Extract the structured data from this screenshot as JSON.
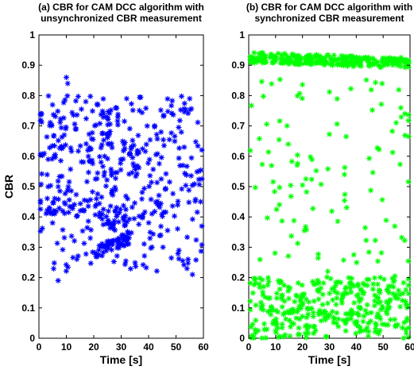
{
  "chart_data": [
    {
      "type": "scatter",
      "title": "(a) CBR for CAM DCC algorithm with unsynchronized CBR measurement",
      "title_lines": [
        "(a) CBR for CAM DCC algorithm with",
        "unsynchronized CBR measurement"
      ],
      "xlabel": "Time [s]",
      "ylabel": "CBR",
      "xlim": [
        0,
        60
      ],
      "ylim": [
        0,
        1
      ],
      "xticks": [
        "0",
        "10",
        "20",
        "30",
        "40",
        "50",
        "60"
      ],
      "yticks": [
        "0",
        "0.1",
        "0.2",
        "0.3",
        "0.4",
        "0.5",
        "0.6",
        "0.7",
        "0.8",
        "0.9",
        "1"
      ],
      "marker": "*",
      "color": "#0000ff",
      "grid": false,
      "points_sample": [
        [
          0.5,
          0.57
        ],
        [
          1,
          0.62
        ],
        [
          1.5,
          0.66
        ],
        [
          2,
          0.53
        ],
        [
          3,
          0.6
        ],
        [
          4,
          0.7
        ],
        [
          5,
          0.65
        ],
        [
          5.5,
          0.28
        ],
        [
          6,
          0.42
        ],
        [
          7,
          0.19
        ],
        [
          8,
          0.76
        ],
        [
          9,
          0.79
        ],
        [
          10,
          0.86
        ],
        [
          10.5,
          0.84
        ],
        [
          12,
          0.33
        ],
        [
          13,
          0.7
        ],
        [
          14,
          0.75
        ],
        [
          15,
          0.3
        ],
        [
          17,
          0.73
        ],
        [
          18,
          0.4
        ],
        [
          19,
          0.25
        ],
        [
          20,
          0.46
        ],
        [
          21,
          0.28
        ],
        [
          22,
          0.27
        ],
        [
          23,
          0.36
        ],
        [
          24,
          0.72
        ],
        [
          25,
          0.43
        ],
        [
          25.5,
          0.28
        ],
        [
          27,
          0.29
        ],
        [
          28,
          0.76
        ],
        [
          29,
          0.3
        ],
        [
          30,
          0.31
        ],
        [
          31,
          0.33
        ],
        [
          32,
          0.79
        ],
        [
          34,
          0.63
        ],
        [
          36,
          0.5
        ],
        [
          38,
          0.7
        ],
        [
          39,
          0.3
        ],
        [
          40,
          0.58
        ],
        [
          42,
          0.68
        ],
        [
          44,
          0.57
        ],
        [
          46,
          0.51
        ],
        [
          48,
          0.72
        ],
        [
          50,
          0.38
        ],
        [
          52,
          0.65
        ],
        [
          54,
          0.23
        ],
        [
          55,
          0.79
        ],
        [
          56,
          0.21
        ],
        [
          58,
          0.67
        ],
        [
          60,
          0.55
        ]
      ]
    },
    {
      "type": "scatter",
      "title": "(b) CBR for CAM DCC algorithm with synchronized CBR measurement",
      "title_lines": [
        "(b) CBR for CAM DCC algorithm with",
        "synchronized CBR measurement"
      ],
      "xlabel": "Time [s]",
      "ylabel": "",
      "xlim": [
        0,
        60
      ],
      "ylim": [
        0,
        1
      ],
      "xticks": [
        "0",
        "10",
        "20",
        "30",
        "40",
        "50",
        "60"
      ],
      "yticks": [
        "0",
        "0.1",
        "0.2",
        "0.3",
        "0.4",
        "0.5",
        "0.6",
        "0.7",
        "0.8",
        "0.9",
        "1"
      ],
      "marker": "*",
      "color": "#00ff00",
      "grid": false,
      "points_sample": [
        [
          1,
          0.94
        ],
        [
          5,
          0.92
        ],
        [
          10,
          0.93
        ],
        [
          15,
          0.92
        ],
        [
          20,
          0.94
        ],
        [
          25,
          0.93
        ],
        [
          30,
          0.92
        ],
        [
          35,
          0.93
        ],
        [
          40,
          0.91
        ],
        [
          45,
          0.92
        ],
        [
          50,
          0.91
        ],
        [
          55,
          0.93
        ],
        [
          60,
          0.92
        ],
        [
          2,
          0.74
        ],
        [
          3,
          0.58
        ],
        [
          2,
          0.45
        ],
        [
          8,
          0.85
        ],
        [
          12,
          0.82
        ],
        [
          18,
          0.79
        ],
        [
          20,
          0.47
        ],
        [
          25,
          0.5
        ],
        [
          27,
          0.37
        ],
        [
          30,
          0.68
        ],
        [
          35,
          0.55
        ],
        [
          37,
          0.43
        ],
        [
          40,
          0.57
        ],
        [
          43,
          0.42
        ],
        [
          45,
          0.37
        ],
        [
          48,
          0.81
        ],
        [
          50,
          0.64
        ],
        [
          52,
          0.46
        ],
        [
          55,
          0.72
        ],
        [
          58,
          0.52
        ],
        [
          1,
          0.15
        ],
        [
          3,
          0.05
        ],
        [
          6,
          0.18
        ],
        [
          10,
          0.1
        ],
        [
          15,
          0.03
        ],
        [
          18,
          0.16
        ],
        [
          22,
          0.08
        ],
        [
          25,
          0.13
        ],
        [
          28,
          0.01
        ],
        [
          30,
          0.11
        ],
        [
          34,
          0.17
        ],
        [
          38,
          0.06
        ],
        [
          40,
          0.14
        ],
        [
          44,
          0.02
        ],
        [
          48,
          0.12
        ],
        [
          52,
          0.09
        ],
        [
          55,
          0.18
        ],
        [
          58,
          0.04
        ],
        [
          60,
          0.15
        ]
      ]
    }
  ]
}
